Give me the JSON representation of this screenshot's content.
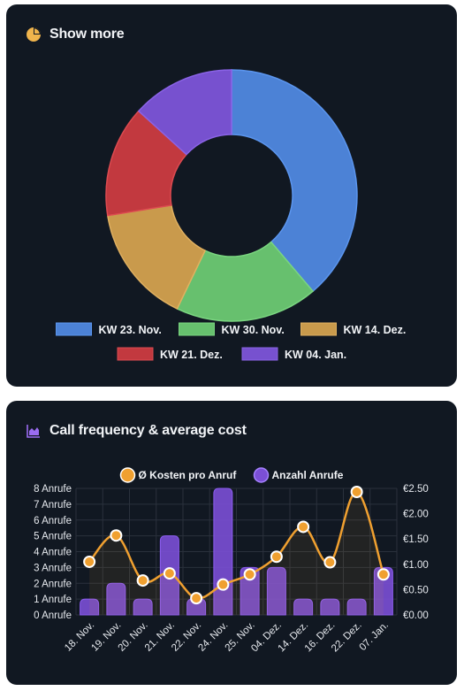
{
  "donut_card": {
    "title": "Show more",
    "icon": "pie-chart-icon",
    "icon_color": "#f0b44c"
  },
  "frequency_card": {
    "title": "Call frequency & average cost",
    "icon": "area-chart-icon",
    "icon_color": "#9b6cf2"
  },
  "chart_data": [
    {
      "type": "pie",
      "variant": "doughnut",
      "labels": [
        "KW 23. Nov.",
        "KW 30. Nov.",
        "KW 14. Dez.",
        "KW 21. Dez.",
        "KW 04. Jan."
      ],
      "values": [
        38,
        18,
        15,
        14,
        13
      ],
      "colors": [
        "#4c82d6",
        "#67c06e",
        "#c99a4c",
        "#c2393f",
        "#7751cf"
      ],
      "border_colors": [
        "#5b95ee",
        "#7ad580",
        "#e0b060",
        "#dc4a50",
        "#8a63e6"
      ],
      "legend_position": "bottom"
    },
    {
      "type": "bar",
      "combo": "bar+line",
      "categories": [
        "18. Nov.",
        "19. Nov.",
        "20. Nov.",
        "21. Nov.",
        "22. Nov.",
        "24. Nov.",
        "25. Nov.",
        "04. Dez.",
        "14. Dez.",
        "16. Dez.",
        "22. Dez.",
        "07. Jan."
      ],
      "series": [
        {
          "name": "Ø Kosten pro Anruf",
          "kind": "line",
          "axis": "right",
          "color": "#f0a030",
          "values": [
            1.05,
            1.57,
            0.68,
            0.82,
            0.33,
            0.6,
            0.8,
            1.15,
            1.74,
            1.04,
            2.43,
            0.8
          ]
        },
        {
          "name": "Anzahl Anrufe",
          "kind": "bar",
          "axis": "left",
          "color": "#7b4fd6",
          "values": [
            1,
            2,
            1,
            5,
            1,
            8,
            3,
            3,
            1,
            1,
            1,
            3
          ]
        }
      ],
      "y_left": {
        "ticks": [
          "0 Anrufe",
          "1 Anrufe",
          "2 Anrufe",
          "3 Anrufe",
          "4 Anrufe",
          "5 Anrufe",
          "6 Anrufe",
          "7 Anrufe",
          "8 Anrufe"
        ],
        "range": [
          0,
          8
        ]
      },
      "y_right": {
        "ticks": [
          "€0.00",
          "€0.50",
          "€1.00",
          "€1.50",
          "€2.00",
          "€2.50"
        ],
        "range": [
          0,
          2.5
        ]
      },
      "legend_position": "top",
      "grid": true
    }
  ]
}
